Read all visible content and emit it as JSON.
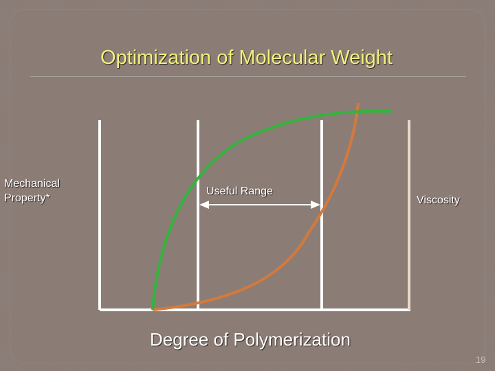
{
  "slide": {
    "title": "Optimization of Molecular Weight",
    "page_number": "19"
  },
  "diagram": {
    "y_label_left": "Mechanical Property*",
    "y_label_right": "Viscosity",
    "x_label": "Degree of Polymerization",
    "range_label": "Useful Range",
    "colors": {
      "background": "#8b7d76",
      "title": "#f2f07e",
      "mechanical_curve": "#33b43c",
      "viscosity_curve": "#d4793c",
      "axes": "#ffffff",
      "right_axis": "#eadbc9"
    }
  }
}
